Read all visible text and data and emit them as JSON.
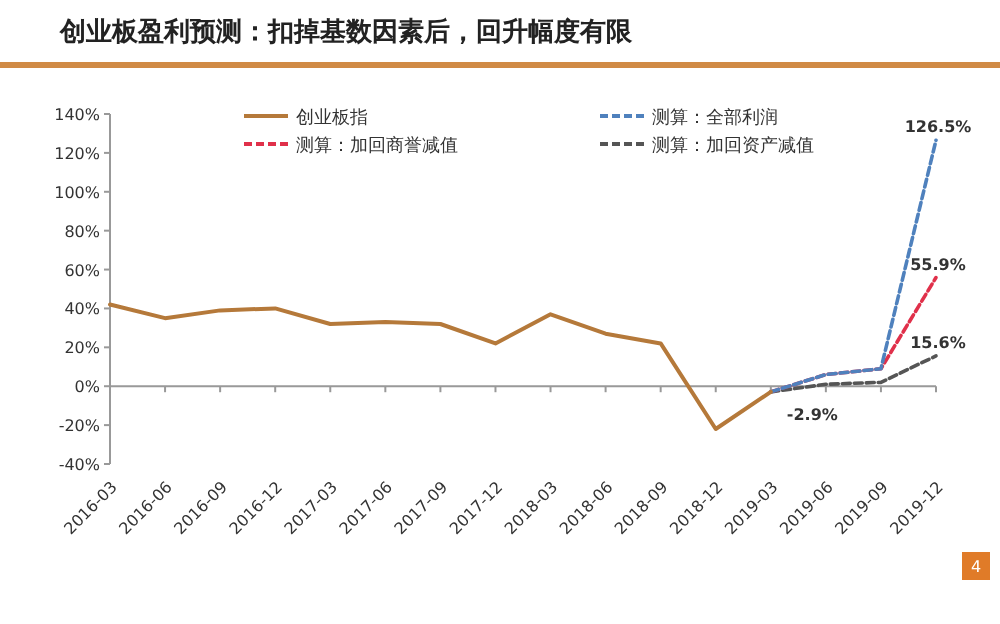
{
  "chart_data": {
    "type": "line",
    "title": "创业板盈利预测：扣掉基数因素后，回升幅度有限",
    "categories": [
      "2016-03",
      "2016-06",
      "2016-09",
      "2016-12",
      "2017-03",
      "2017-06",
      "2017-09",
      "2017-12",
      "2018-03",
      "2018-06",
      "2018-09",
      "2018-12",
      "2019-03",
      "2019-06",
      "2019-09",
      "2019-12"
    ],
    "series": [
      {
        "name": "创业板指",
        "color": "#b5793a",
        "line_style": "solid",
        "values": [
          42,
          35,
          39,
          40,
          32,
          33,
          32,
          22,
          37,
          27,
          22,
          -22,
          -2.9,
          null,
          null,
          null
        ]
      },
      {
        "name": "测算：全部利润",
        "color": "#4f81bd",
        "line_style": "dashed",
        "values": [
          null,
          null,
          null,
          null,
          null,
          null,
          null,
          null,
          null,
          null,
          null,
          null,
          -2.9,
          6,
          9,
          126.5
        ],
        "value_labels": [
          null,
          null,
          null,
          null,
          null,
          null,
          null,
          null,
          null,
          null,
          null,
          null,
          null,
          null,
          null,
          "126.5%"
        ]
      },
      {
        "name": "测算：加回商誉减值",
        "color": "#e0304a",
        "line_style": "dashed",
        "values": [
          null,
          null,
          null,
          null,
          null,
          null,
          null,
          null,
          null,
          null,
          null,
          null,
          -2.9,
          6,
          9,
          55.9
        ],
        "value_labels": [
          null,
          null,
          null,
          null,
          null,
          null,
          null,
          null,
          null,
          null,
          null,
          null,
          null,
          null,
          null,
          "55.9%"
        ]
      },
      {
        "name": "测算：加回资产减值",
        "color": "#555555",
        "line_style": "dashed",
        "values": [
          null,
          null,
          null,
          null,
          null,
          null,
          null,
          null,
          null,
          null,
          null,
          null,
          -2.9,
          1,
          2,
          15.6
        ],
        "value_labels": [
          null,
          null,
          null,
          null,
          null,
          null,
          null,
          null,
          null,
          null,
          null,
          null,
          "-2.9%",
          null,
          null,
          "15.6%"
        ]
      }
    ],
    "ylim": [
      -40,
      140
    ],
    "yticks": [
      {
        "value": -40,
        "label": "-40%"
      },
      {
        "value": -20,
        "label": "-20%"
      },
      {
        "value": 0,
        "label": "0%"
      },
      {
        "value": 20,
        "label": "20%"
      },
      {
        "value": 40,
        "label": "40%"
      },
      {
        "value": 60,
        "label": "60%"
      },
      {
        "value": 80,
        "label": "80%"
      },
      {
        "value": 100,
        "label": "100%"
      },
      {
        "value": 120,
        "label": "120%"
      },
      {
        "value": 140,
        "label": "140%"
      }
    ],
    "legend": "top",
    "annotations": [
      "4"
    ]
  }
}
